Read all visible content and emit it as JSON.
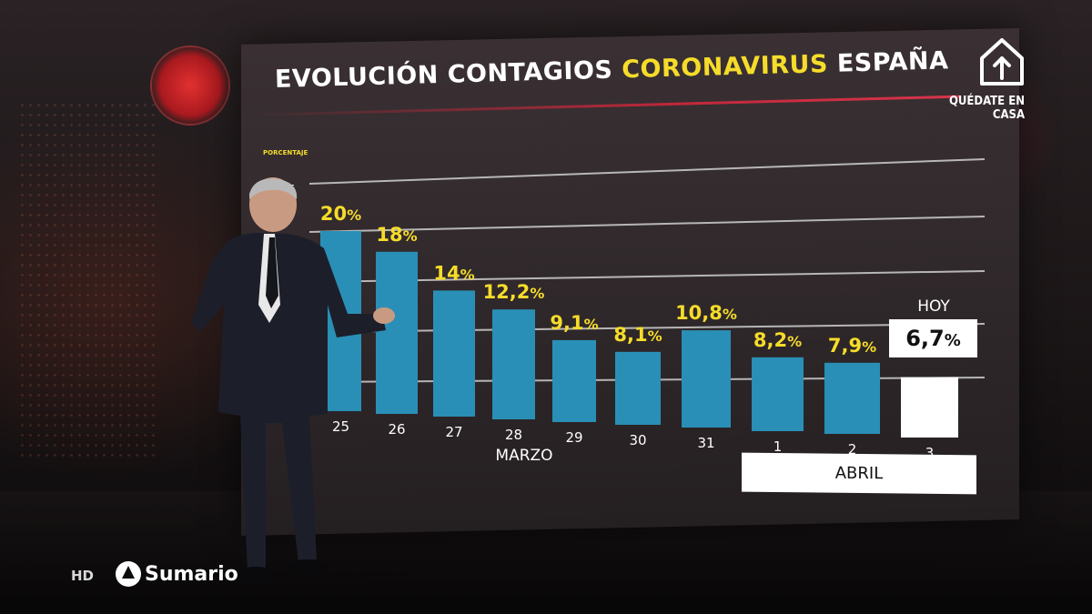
{
  "title": {
    "part1": "EVOLUCIÓN CONTAGIOS",
    "part2": "CORONAVIRUS",
    "part3": "ESPAÑA"
  },
  "branding": {
    "home_text": "QUÉDATE EN CASA",
    "hd": "HD",
    "program": "Sumario",
    "icons": [
      "home-arrow-icon",
      "channel-logo-icon"
    ]
  },
  "colors": {
    "bar": "#2a8fb6",
    "bar_today": "#ffffff",
    "value_text": "#f6dc2a",
    "accent_red": "#c0283a"
  },
  "chart_data": {
    "type": "bar",
    "ylabel": "PORCENTAJE",
    "y_axis_visible_tick": "5",
    "categories": [
      "25",
      "26",
      "27",
      "28",
      "29",
      "30",
      "31",
      "1",
      "2",
      "3"
    ],
    "values": [
      20,
      18,
      14,
      12.2,
      9.1,
      8.1,
      10.8,
      8.2,
      7.9,
      6.7
    ],
    "value_labels": [
      "20",
      "18",
      "14",
      "12,2",
      "9,1",
      "8,1",
      "10,8",
      "8,2",
      "7,9",
      "6,7"
    ],
    "value_suffix": "%",
    "highlight_index": 9,
    "highlight_label": "HOY",
    "month_groups": [
      {
        "label": "MARZO"
      },
      {
        "label": "ABRIL"
      }
    ],
    "grid": true,
    "legend": "none"
  }
}
